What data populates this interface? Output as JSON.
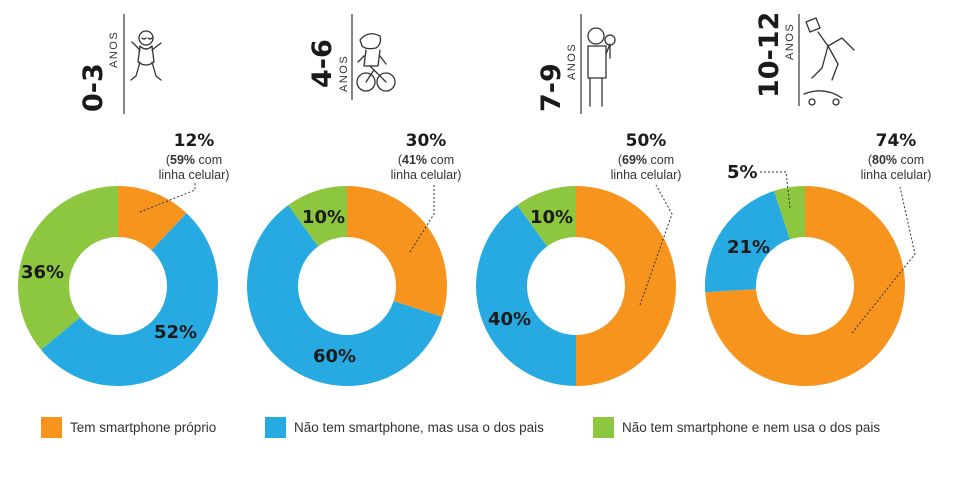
{
  "colors": {
    "own": "#f7941d",
    "parents": "#27aae1",
    "none": "#8dc63f"
  },
  "chart_data": {
    "type": "pie",
    "variant": "donut",
    "series_legend": [
      {
        "key": "own",
        "label": "Tem smartphone próprio"
      },
      {
        "key": "parents",
        "label": "Não tem smartphone, mas usa o dos pais"
      },
      {
        "key": "none",
        "label": "Não tem smartphone e nem usa o dos pais"
      }
    ],
    "groups": [
      {
        "age_range": "0-3",
        "age_unit": "ANOS",
        "icon": "baby-icon",
        "slices": [
          {
            "key": "own",
            "value": 12,
            "label": "12%"
          },
          {
            "key": "parents",
            "value": 52,
            "label": "52%"
          },
          {
            "key": "none",
            "value": 36,
            "label": "36%"
          }
        ],
        "annotation": {
          "pct": "12%",
          "open": "(",
          "bold": "59%",
          "rest": " com",
          "line2": "linha celular)"
        }
      },
      {
        "age_range": "4-6",
        "age_unit": "ANOS",
        "icon": "child-on-bike-icon",
        "slices": [
          {
            "key": "own",
            "value": 30,
            "label": "30%"
          },
          {
            "key": "parents",
            "value": 60,
            "label": "60%"
          },
          {
            "key": "none",
            "value": 10,
            "label": "10%"
          }
        ],
        "annotation": {
          "pct": "30%",
          "open": "(",
          "bold": "41%",
          "rest": " com",
          "line2": "linha celular)"
        }
      },
      {
        "age_range": "7-9",
        "age_unit": "ANOS",
        "icon": "child-with-lollipop-icon",
        "slices": [
          {
            "key": "own",
            "value": 50,
            "label": "50%"
          },
          {
            "key": "parents",
            "value": 40,
            "label": "40%"
          },
          {
            "key": "none",
            "value": 10,
            "label": "10%"
          }
        ],
        "annotation": {
          "pct": "50%",
          "open": "(",
          "bold": "69%",
          "rest": " com",
          "line2": "linha celular)"
        }
      },
      {
        "age_range": "10-12",
        "age_unit": "ANOS",
        "icon": "skateboarder-icon",
        "slices": [
          {
            "key": "own",
            "value": 74,
            "label": "74%"
          },
          {
            "key": "parents",
            "value": 21,
            "label": "21%"
          },
          {
            "key": "none",
            "value": 5,
            "label": "5%"
          }
        ],
        "annotation": {
          "pct": "74%",
          "open": "(",
          "bold": "80%",
          "rest": " com",
          "line2": "linha celular)"
        }
      }
    ]
  }
}
